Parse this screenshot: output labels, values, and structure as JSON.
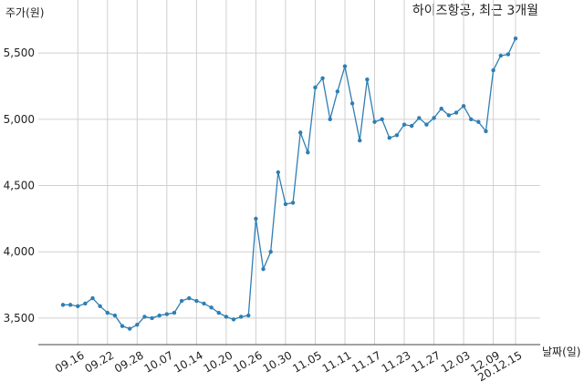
{
  "chart_data": {
    "type": "line",
    "title": "하이즈항공, 최근 3개월",
    "y_label": "주가(원)",
    "x_label": "날짜(일)",
    "categories": [
      null,
      null,
      "09.16",
      null,
      null,
      null,
      "09.22",
      null,
      null,
      null,
      "09.28",
      null,
      null,
      null,
      "10.07",
      null,
      null,
      null,
      "10.14",
      null,
      null,
      null,
      "10.20",
      null,
      null,
      null,
      "10.26",
      null,
      null,
      null,
      "10.30",
      null,
      null,
      null,
      "11.05",
      null,
      null,
      null,
      "11.11",
      null,
      null,
      null,
      "11.17",
      null,
      null,
      null,
      "11.23",
      null,
      null,
      null,
      "11.27",
      null,
      null,
      null,
      "12.03",
      null,
      null,
      null,
      "12.09",
      null,
      null,
      "20.12.15"
    ],
    "series": [
      {
        "name": "하이즈항공",
        "color": "#2f7eb3",
        "values": [
          3600,
          3600,
          3590,
          3610,
          3650,
          3590,
          3540,
          3520,
          3440,
          3420,
          3450,
          3510,
          3500,
          3520,
          3530,
          3540,
          3630,
          3650,
          3630,
          3610,
          3580,
          3540,
          3510,
          3490,
          3510,
          3520,
          4250,
          3870,
          4000,
          4600,
          4360,
          4370,
          4900,
          4750,
          5240,
          5310,
          5000,
          5210,
          5400,
          5120,
          4840,
          5300,
          4980,
          5000,
          4860,
          4880,
          4960,
          4950,
          5010,
          4960,
          5010,
          5080,
          5030,
          5050,
          5100,
          5000,
          4980,
          4910,
          5370,
          5480,
          5490,
          5610
        ]
      }
    ],
    "ylim": [
      3300,
      5900
    ],
    "yticks": [
      {
        "value": 3500,
        "label": "3,500"
      },
      {
        "value": 4000,
        "label": "4,000"
      },
      {
        "value": 4500,
        "label": "4,500"
      },
      {
        "value": 5000,
        "label": "5,000"
      },
      {
        "value": 5500,
        "label": "5,500"
      }
    ],
    "grid": true
  }
}
